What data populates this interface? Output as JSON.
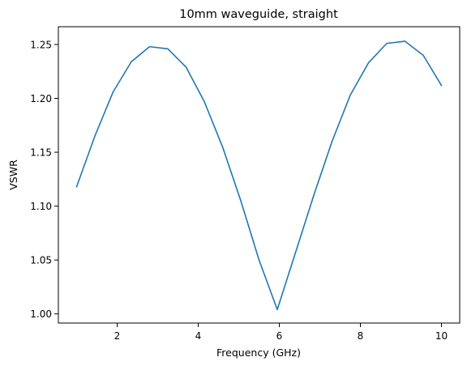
{
  "chart_data": {
    "type": "line",
    "title": "10mm waveguide, straight",
    "xlabel": "Frequency (GHz)",
    "ylabel": "VSWR",
    "xlim": [
      0.55,
      10.45
    ],
    "ylim": [
      0.9915,
      1.2665
    ],
    "xticks": [
      2,
      4,
      6,
      8,
      10
    ],
    "xtick_labels": [
      "2",
      "4",
      "6",
      "8",
      "10"
    ],
    "yticks": [
      1.0,
      1.05,
      1.1,
      1.15,
      1.2,
      1.25
    ],
    "ytick_labels": [
      "1.00",
      "1.05",
      "1.10",
      "1.15",
      "1.20",
      "1.25"
    ],
    "grid": false,
    "line_color": "#1f77b4",
    "series": [
      {
        "x": [
          1.0,
          1.45,
          1.9,
          2.35,
          2.8,
          3.25,
          3.7,
          4.15,
          4.6,
          5.05,
          5.5,
          5.95,
          6.4,
          6.85,
          7.3,
          7.75,
          8.2,
          8.65,
          9.1,
          9.55,
          10.0
        ],
        "values": [
          1.118,
          1.165,
          1.206,
          1.234,
          1.248,
          1.246,
          1.229,
          1.197,
          1.155,
          1.105,
          1.05,
          1.004,
          1.057,
          1.11,
          1.16,
          1.203,
          1.233,
          1.251,
          1.253,
          1.24,
          1.212
        ]
      }
    ]
  }
}
